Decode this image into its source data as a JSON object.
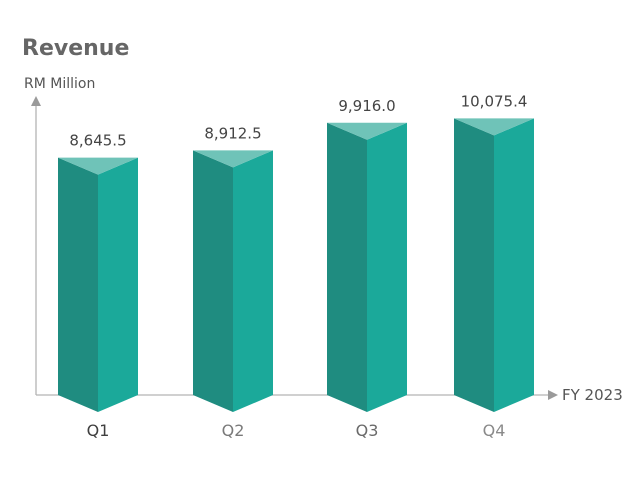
{
  "chart_data": {
    "type": "bar",
    "title": "Revenue",
    "ylabel": "RM Million",
    "xlabel": "FY 2023",
    "categories": [
      "Q1",
      "Q2",
      "Q3",
      "Q4"
    ],
    "values": [
      8645.5,
      8912.5,
      9916.0,
      10075.4
    ],
    "value_labels": [
      "8,645.5",
      "8,912.5",
      "9,916.0",
      "10,075.4"
    ],
    "ylim": [
      0,
      10600
    ],
    "grid": false,
    "legend": "none",
    "colors": {
      "bar_left": "#1f8c80",
      "bar_right": "#1ba99a",
      "bar_top": "#6fc3b8",
      "axis": "#b3b3b3",
      "title": "#666666",
      "category_labels": [
        "#3f3f3f",
        "#7a7a7a",
        "#6a6a6a",
        "#8a8a8a"
      ]
    }
  }
}
